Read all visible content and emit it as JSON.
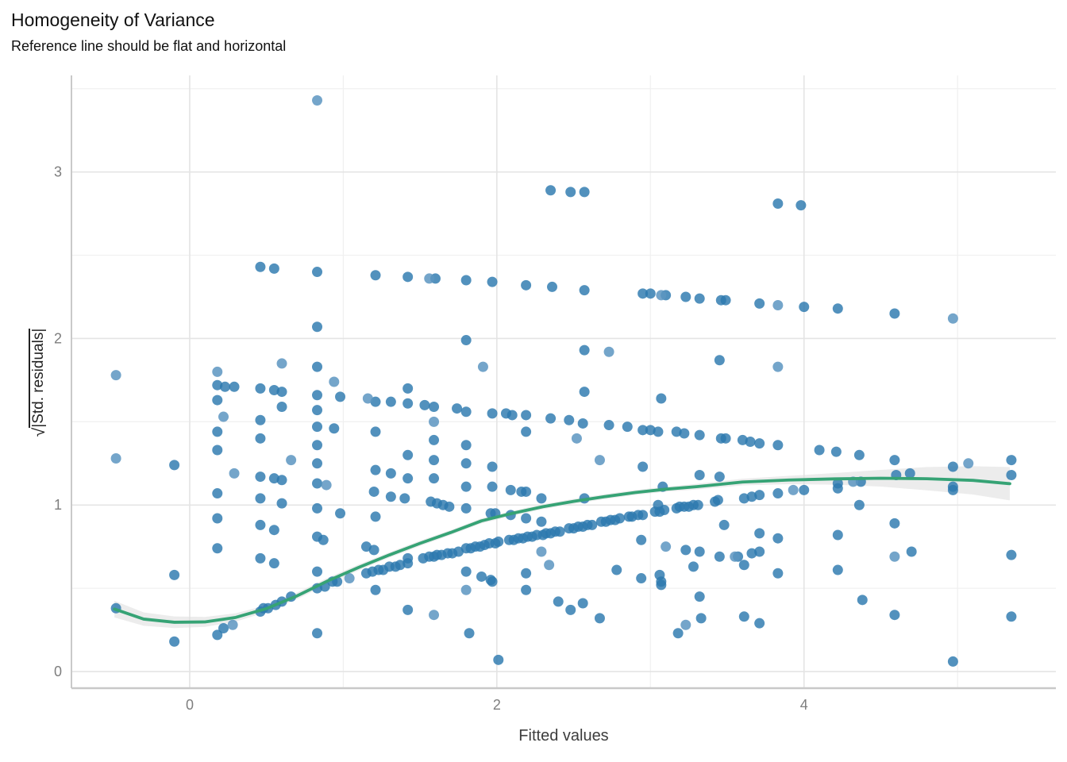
{
  "header": {
    "title": "Homogeneity of Variance",
    "subtitle": "Reference line should be flat and horizontal"
  },
  "axes": {
    "x": {
      "label": "Fitted values",
      "range": [
        -0.77,
        5.64
      ],
      "major_ticks": [
        {
          "v": 0,
          "label": "0"
        },
        {
          "v": 2,
          "label": "2"
        },
        {
          "v": 4,
          "label": "4"
        }
      ],
      "minor_ticks": [
        1,
        3,
        5
      ]
    },
    "y": {
      "label_radical": "√",
      "label_expr": "|Std. residuals|",
      "range": [
        -0.1,
        3.58
      ],
      "major_ticks": [
        {
          "v": 0,
          "label": "0"
        },
        {
          "v": 1,
          "label": "1"
        },
        {
          "v": 2,
          "label": "2"
        },
        {
          "v": 3,
          "label": "3"
        }
      ],
      "minor_ticks": [
        0.5,
        1.5,
        2.5,
        3.5
      ]
    }
  },
  "colors": {
    "point": "#2c79ae",
    "point_light": "#5c95c1",
    "smooth_line": "#36a375",
    "ribbon": "#e0e0e0",
    "grid_major": "#e4e4e4",
    "grid_minor": "#f0f0f0",
    "axis_line": "#c9c9c9",
    "tick_text": "#7e7e7e"
  },
  "chart_data": {
    "type": "scatter",
    "title": "Homogeneity of Variance",
    "subtitle": "Reference line should be flat and horizontal",
    "xlabel": "Fitted values",
    "ylabel": "sqrt(|Std. residuals|)",
    "xlim": [
      -0.77,
      5.64
    ],
    "ylim": [
      -0.1,
      3.58
    ],
    "grid": true,
    "legend": false,
    "points": [
      [
        2.35,
        2.89
      ],
      [
        2.48,
        2.88
      ],
      [
        2.57,
        2.88
      ],
      [
        3.83,
        2.81
      ],
      [
        3.98,
        2.8
      ],
      [
        0.46,
        2.43
      ],
      [
        0.55,
        2.42
      ],
      [
        0.83,
        2.4
      ],
      [
        1.21,
        2.38
      ],
      [
        1.42,
        2.37
      ],
      [
        1.6,
        2.36
      ],
      [
        1.8,
        2.35
      ],
      [
        1.97,
        2.34
      ],
      [
        2.19,
        2.32
      ],
      [
        2.36,
        2.31
      ],
      [
        2.57,
        2.29
      ],
      [
        2.95,
        2.27
      ],
      [
        3.0,
        2.27
      ],
      [
        3.1,
        2.26
      ],
      [
        3.23,
        2.25
      ],
      [
        3.32,
        2.24
      ],
      [
        3.46,
        2.23
      ],
      [
        3.49,
        2.23
      ],
      [
        3.71,
        2.21
      ],
      [
        4.0,
        2.19
      ],
      [
        4.22,
        2.18
      ],
      [
        4.59,
        2.15
      ],
      [
        0.83,
        2.07
      ],
      [
        1.8,
        1.99
      ],
      [
        2.57,
        1.93
      ],
      [
        3.45,
        1.87
      ],
      [
        0.83,
        1.83
      ],
      [
        0.18,
        1.72
      ],
      [
        0.23,
        1.71
      ],
      [
        0.29,
        1.71
      ],
      [
        0.46,
        1.7
      ],
      [
        0.55,
        1.69
      ],
      [
        0.6,
        1.68
      ],
      [
        0.83,
        1.66
      ],
      [
        0.98,
        1.65
      ],
      [
        1.21,
        1.62
      ],
      [
        1.31,
        1.62
      ],
      [
        1.42,
        1.7
      ],
      [
        2.57,
        1.68
      ],
      [
        3.07,
        1.64
      ],
      [
        0.18,
        1.63
      ],
      [
        0.6,
        1.59
      ],
      [
        0.83,
        1.57
      ],
      [
        0.46,
        1.51
      ],
      [
        1.42,
        1.61
      ],
      [
        1.53,
        1.6
      ],
      [
        1.59,
        1.59
      ],
      [
        1.74,
        1.58
      ],
      [
        1.8,
        1.56
      ],
      [
        1.97,
        1.55
      ],
      [
        2.06,
        1.55
      ],
      [
        2.1,
        1.54
      ],
      [
        2.19,
        1.54
      ],
      [
        2.35,
        1.52
      ],
      [
        2.47,
        1.51
      ],
      [
        2.56,
        1.49
      ],
      [
        2.73,
        1.48
      ],
      [
        2.85,
        1.47
      ],
      [
        2.95,
        1.45
      ],
      [
        3.0,
        1.45
      ],
      [
        3.05,
        1.44
      ],
      [
        3.17,
        1.44
      ],
      [
        3.22,
        1.43
      ],
      [
        3.32,
        1.42
      ],
      [
        3.46,
        1.4
      ],
      [
        3.49,
        1.4
      ],
      [
        0.83,
        1.47
      ],
      [
        0.94,
        1.46
      ],
      [
        1.21,
        1.44
      ],
      [
        0.18,
        1.44
      ],
      [
        2.19,
        1.44
      ],
      [
        0.46,
        1.4
      ],
      [
        1.59,
        1.39
      ],
      [
        1.8,
        1.36
      ],
      [
        0.83,
        1.36
      ],
      [
        3.6,
        1.39
      ],
      [
        3.65,
        1.38
      ],
      [
        3.71,
        1.37
      ],
      [
        3.83,
        1.36
      ],
      [
        4.1,
        1.33
      ],
      [
        4.21,
        1.32
      ],
      [
        4.36,
        1.3
      ],
      [
        4.59,
        1.27
      ],
      [
        0.18,
        1.33
      ],
      [
        -0.1,
        1.24
      ],
      [
        0.83,
        1.25
      ],
      [
        1.21,
        1.21
      ],
      [
        1.31,
        1.19
      ],
      [
        0.46,
        1.17
      ],
      [
        0.55,
        1.16
      ],
      [
        0.6,
        1.15
      ],
      [
        0.83,
        1.13
      ],
      [
        1.42,
        1.3
      ],
      [
        1.59,
        1.27
      ],
      [
        1.8,
        1.25
      ],
      [
        1.97,
        1.23
      ],
      [
        2.95,
        1.23
      ],
      [
        3.32,
        1.18
      ],
      [
        3.45,
        1.17
      ],
      [
        3.08,
        1.11
      ],
      [
        1.42,
        1.16
      ],
      [
        1.59,
        1.16
      ],
      [
        4.6,
        1.18
      ],
      [
        4.69,
        1.19
      ],
      [
        4.97,
        1.23
      ],
      [
        5.35,
        1.27
      ],
      [
        5.35,
        1.18
      ],
      [
        4.22,
        1.13
      ],
      [
        4.37,
        1.14
      ],
      [
        4.97,
        1.11
      ],
      [
        0.18,
        1.07
      ],
      [
        0.46,
        1.04
      ],
      [
        0.6,
        1.01
      ],
      [
        0.83,
        0.98
      ],
      [
        0.98,
        0.95
      ],
      [
        1.2,
        1.08
      ],
      [
        1.31,
        1.05
      ],
      [
        1.4,
        1.04
      ],
      [
        0.18,
        0.92
      ],
      [
        0.46,
        0.88
      ],
      [
        0.55,
        0.85
      ],
      [
        0.83,
        0.81
      ],
      [
        0.87,
        0.79
      ],
      [
        1.21,
        0.93
      ],
      [
        1.8,
        1.11
      ],
      [
        1.97,
        1.11
      ],
      [
        2.09,
        1.09
      ],
      [
        2.16,
        1.08
      ],
      [
        2.19,
        1.08
      ],
      [
        2.29,
        1.04
      ],
      [
        2.57,
        1.04
      ],
      [
        3.05,
        1.0
      ],
      [
        1.57,
        1.02
      ],
      [
        1.61,
        1.01
      ],
      [
        1.65,
        1.0
      ],
      [
        1.69,
        0.99
      ],
      [
        1.8,
        0.98
      ],
      [
        1.96,
        0.95
      ],
      [
        1.99,
        0.95
      ],
      [
        2.09,
        0.94
      ],
      [
        2.19,
        0.92
      ],
      [
        2.29,
        0.9
      ],
      [
        3.61,
        1.04
      ],
      [
        3.66,
        1.05
      ],
      [
        3.71,
        1.06
      ],
      [
        3.83,
        1.07
      ],
      [
        4.0,
        1.09
      ],
      [
        4.22,
        1.1
      ],
      [
        4.97,
        1.09
      ],
      [
        4.36,
        1.0
      ],
      [
        4.59,
        0.89
      ],
      [
        3.48,
        0.88
      ],
      [
        0.18,
        0.74
      ],
      [
        0.46,
        0.68
      ],
      [
        0.55,
        0.65
      ],
      [
        -0.1,
        0.58
      ],
      [
        0.83,
        0.6
      ],
      [
        1.15,
        0.75
      ],
      [
        1.2,
        0.73
      ],
      [
        1.23,
        0.61
      ],
      [
        1.21,
        0.49
      ],
      [
        -0.48,
        0.38
      ],
      [
        -0.1,
        0.18
      ],
      [
        0.18,
        0.22
      ],
      [
        0.22,
        0.26
      ],
      [
        0.46,
        0.36
      ],
      [
        0.48,
        0.38
      ],
      [
        0.51,
        0.38
      ],
      [
        0.56,
        0.4
      ],
      [
        0.6,
        0.42
      ],
      [
        0.66,
        0.45
      ],
      [
        0.83,
        0.5
      ],
      [
        0.83,
        0.23
      ],
      [
        0.88,
        0.51
      ],
      [
        0.93,
        0.54
      ],
      [
        0.96,
        0.54
      ],
      [
        1.15,
        0.59
      ],
      [
        1.19,
        0.6
      ],
      [
        1.26,
        0.61
      ],
      [
        1.3,
        0.63
      ],
      [
        1.34,
        0.63
      ],
      [
        1.37,
        0.64
      ],
      [
        1.42,
        0.65
      ],
      [
        1.42,
        0.68
      ],
      [
        1.52,
        0.68
      ],
      [
        1.56,
        0.69
      ],
      [
        1.59,
        0.69
      ],
      [
        1.61,
        0.7
      ],
      [
        1.64,
        0.7
      ],
      [
        1.68,
        0.71
      ],
      [
        1.71,
        0.71
      ],
      [
        1.75,
        0.72
      ],
      [
        1.8,
        0.74
      ],
      [
        1.83,
        0.74
      ],
      [
        1.86,
        0.75
      ],
      [
        1.89,
        0.75
      ],
      [
        1.92,
        0.76
      ],
      [
        1.95,
        0.77
      ],
      [
        1.99,
        0.77
      ],
      [
        2.01,
        0.78
      ],
      [
        2.08,
        0.79
      ],
      [
        2.11,
        0.79
      ],
      [
        2.14,
        0.8
      ],
      [
        2.17,
        0.8
      ],
      [
        2.2,
        0.81
      ],
      [
        2.23,
        0.81
      ],
      [
        2.26,
        0.82
      ],
      [
        2.3,
        0.82
      ],
      [
        2.32,
        0.83
      ],
      [
        2.35,
        0.83
      ],
      [
        2.38,
        0.84
      ],
      [
        2.41,
        0.84
      ],
      [
        2.47,
        0.86
      ],
      [
        2.5,
        0.86
      ],
      [
        2.53,
        0.87
      ],
      [
        2.56,
        0.87
      ],
      [
        2.59,
        0.88
      ],
      [
        2.62,
        0.88
      ],
      [
        2.68,
        0.9
      ],
      [
        2.71,
        0.9
      ],
      [
        2.74,
        0.91
      ],
      [
        2.77,
        0.91
      ],
      [
        2.8,
        0.92
      ],
      [
        2.86,
        0.93
      ],
      [
        2.88,
        0.93
      ],
      [
        2.92,
        0.94
      ],
      [
        2.95,
        0.94
      ],
      [
        3.03,
        0.96
      ],
      [
        3.06,
        0.96
      ],
      [
        3.09,
        0.97
      ],
      [
        3.17,
        0.98
      ],
      [
        3.19,
        0.99
      ],
      [
        3.22,
        0.99
      ],
      [
        3.25,
        0.99
      ],
      [
        3.28,
        1.0
      ],
      [
        3.31,
        1.0
      ],
      [
        3.42,
        1.02
      ],
      [
        3.44,
        1.03
      ],
      [
        2.94,
        0.79
      ],
      [
        3.23,
        0.73
      ],
      [
        3.32,
        0.72
      ],
      [
        3.45,
        0.69
      ],
      [
        3.28,
        0.63
      ],
      [
        2.78,
        0.61
      ],
      [
        3.06,
        0.58
      ],
      [
        3.07,
        0.54
      ],
      [
        3.07,
        0.52
      ],
      [
        2.94,
        0.56
      ],
      [
        1.42,
        0.37
      ],
      [
        1.8,
        0.6
      ],
      [
        1.9,
        0.57
      ],
      [
        1.96,
        0.55
      ],
      [
        1.97,
        0.54
      ],
      [
        2.19,
        0.59
      ],
      [
        2.19,
        0.49
      ],
      [
        2.4,
        0.42
      ],
      [
        2.48,
        0.37
      ],
      [
        2.56,
        0.41
      ],
      [
        2.67,
        0.32
      ],
      [
        1.82,
        0.23
      ],
      [
        2.01,
        0.07
      ],
      [
        3.18,
        0.23
      ],
      [
        3.33,
        0.32
      ],
      [
        3.32,
        0.45
      ],
      [
        3.66,
        0.71
      ],
      [
        3.71,
        0.72
      ],
      [
        3.57,
        0.69
      ],
      [
        3.61,
        0.64
      ],
      [
        3.83,
        0.59
      ],
      [
        4.7,
        0.72
      ],
      [
        5.35,
        0.7
      ],
      [
        4.38,
        0.43
      ],
      [
        4.59,
        0.34
      ],
      [
        5.35,
        0.33
      ],
      [
        3.61,
        0.33
      ],
      [
        3.71,
        0.29
      ],
      [
        4.97,
        0.06
      ],
      [
        3.71,
        0.83
      ],
      [
        3.83,
        0.8
      ],
      [
        4.22,
        0.82
      ],
      [
        4.22,
        0.61
      ]
    ],
    "points_light": [
      [
        0.83,
        3.43
      ],
      [
        0.6,
        1.85
      ],
      [
        0.18,
        1.8
      ],
      [
        -0.48,
        1.78
      ],
      [
        0.94,
        1.74
      ],
      [
        2.73,
        1.92
      ],
      [
        1.91,
        1.83
      ],
      [
        0.22,
        1.53
      ],
      [
        1.59,
        1.5
      ],
      [
        -0.48,
        1.28
      ],
      [
        0.66,
        1.27
      ],
      [
        2.67,
        1.27
      ],
      [
        0.89,
        1.12
      ],
      [
        1.56,
        2.36
      ],
      [
        3.07,
        2.26
      ],
      [
        3.83,
        2.2
      ],
      [
        4.97,
        2.12
      ],
      [
        3.83,
        1.83
      ],
      [
        5.07,
        1.25
      ],
      [
        3.1,
        0.75
      ],
      [
        2.29,
        0.72
      ],
      [
        3.55,
        0.69
      ],
      [
        4.59,
        0.69
      ],
      [
        1.59,
        0.34
      ],
      [
        1.04,
        0.56
      ],
      [
        4.32,
        1.14
      ],
      [
        2.52,
        1.4
      ],
      [
        1.16,
        1.64
      ],
      [
        0.29,
        1.19
      ],
      [
        3.93,
        1.09
      ],
      [
        2.34,
        0.64
      ],
      [
        1.8,
        0.49
      ],
      [
        0.28,
        0.28
      ],
      [
        3.23,
        0.28
      ]
    ],
    "smooth_line": {
      "x": [
        -0.49,
        -0.3,
        -0.1,
        0.1,
        0.3,
        0.5,
        0.7,
        0.9,
        1.1,
        1.3,
        1.5,
        1.7,
        1.9,
        2.1,
        2.3,
        2.5,
        2.7,
        2.9,
        3.1,
        3.3,
        3.6,
        3.9,
        4.2,
        4.5,
        4.8,
        5.1,
        5.34
      ],
      "y": [
        0.375,
        0.315,
        0.296,
        0.298,
        0.325,
        0.378,
        0.455,
        0.545,
        0.625,
        0.7,
        0.77,
        0.835,
        0.905,
        0.95,
        0.99,
        1.022,
        1.05,
        1.075,
        1.095,
        1.11,
        1.138,
        1.15,
        1.157,
        1.161,
        1.158,
        1.148,
        1.128
      ]
    },
    "ribbon": {
      "x": [
        -0.49,
        -0.3,
        -0.1,
        0.1,
        0.3,
        0.5,
        0.7,
        0.9,
        1.1,
        1.3,
        1.5,
        1.7,
        1.9,
        2.1,
        2.3,
        2.5,
        2.7,
        2.9,
        3.1,
        3.3,
        3.6,
        3.9,
        4.2,
        4.5,
        4.8,
        5.1,
        5.34
      ],
      "upper": [
        0.425,
        0.355,
        0.331,
        0.328,
        0.35,
        0.398,
        0.475,
        0.563,
        0.643,
        0.716,
        0.786,
        0.85,
        0.92,
        0.965,
        1.005,
        1.037,
        1.065,
        1.09,
        1.11,
        1.127,
        1.158,
        1.175,
        1.192,
        1.211,
        1.228,
        1.233,
        1.228
      ],
      "lower": [
        0.325,
        0.275,
        0.261,
        0.268,
        0.3,
        0.358,
        0.435,
        0.527,
        0.607,
        0.684,
        0.754,
        0.82,
        0.89,
        0.935,
        0.975,
        1.007,
        1.035,
        1.06,
        1.08,
        1.093,
        1.118,
        1.125,
        1.122,
        1.111,
        1.088,
        1.063,
        1.028
      ]
    }
  }
}
